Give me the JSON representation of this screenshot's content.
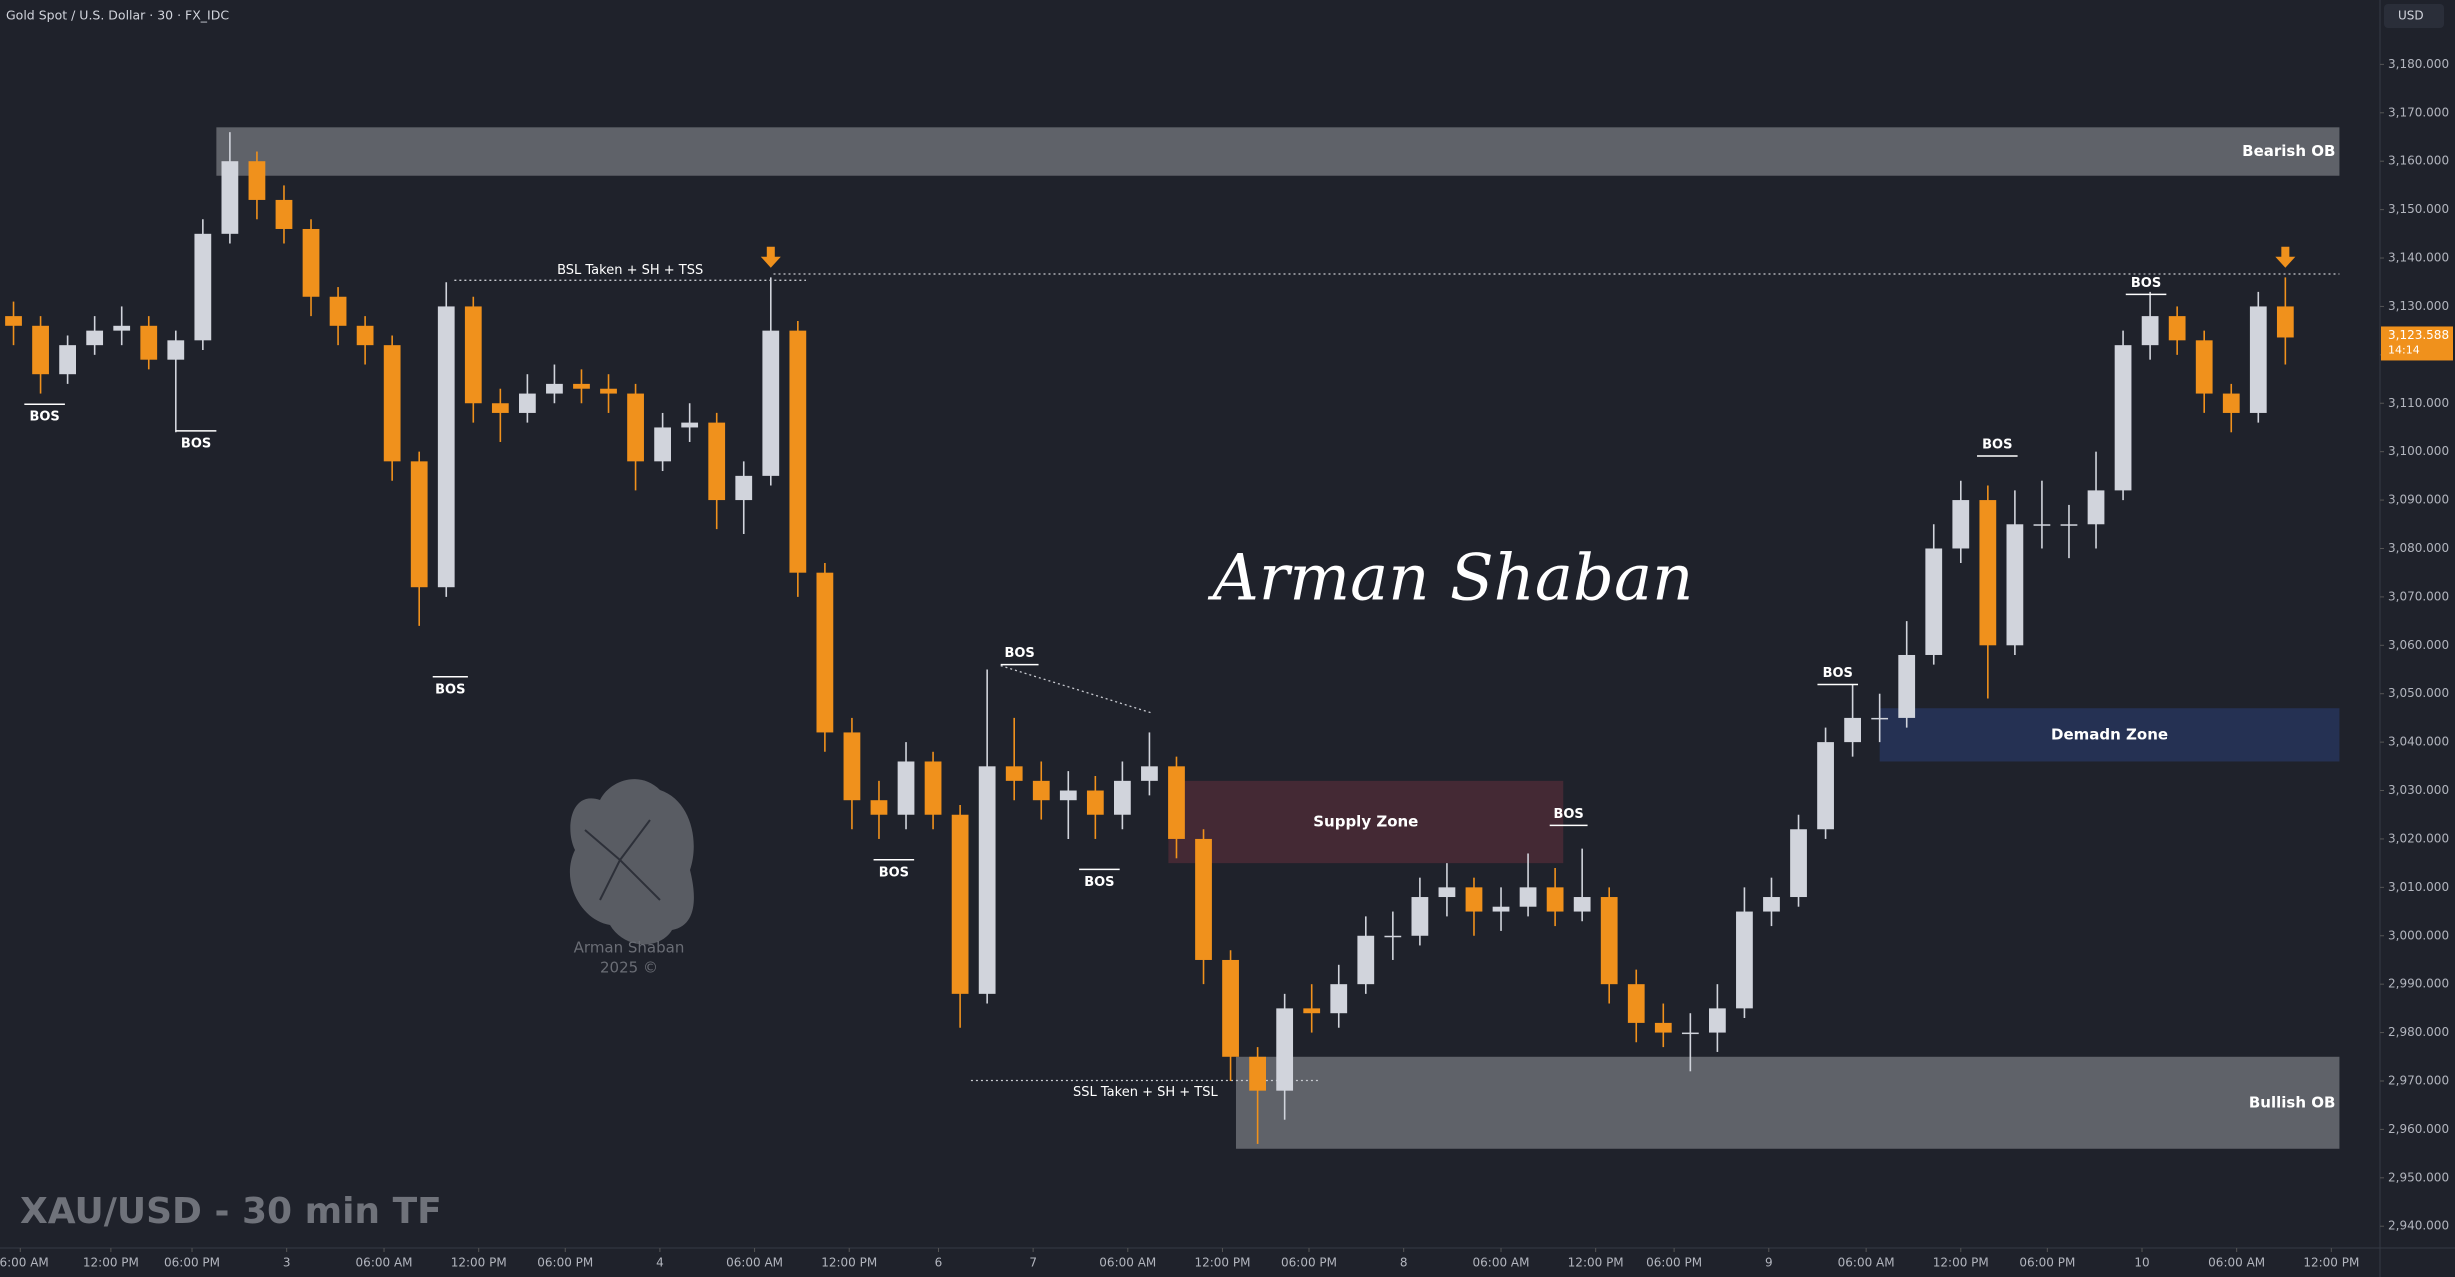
{
  "header": {
    "symbol": "Gold Spot / U.S. Dollar · 30 · FX_IDC",
    "currency": "USD",
    "caption": "XAU/USD - 30 min TF",
    "signature": "Arman Shaban",
    "logo_name": "Arman Shaban",
    "logo_year": "2025 ©"
  },
  "chart_data": {
    "type": "candlestick",
    "up_color": "#d1d4dc",
    "down_color": "#f0911c",
    "xlim": [
      0,
      88
    ],
    "ylim": [
      2935.5,
      3193.3
    ],
    "xticks": [
      {
        "value": 0.75,
        "label": "06:00 AM"
      },
      {
        "value": 4.1,
        "label": "12:00 PM"
      },
      {
        "value": 7.1,
        "label": "06:00 PM"
      },
      {
        "value": 10.6,
        "label": "3"
      },
      {
        "value": 14.2,
        "label": "06:00 AM"
      },
      {
        "value": 17.7,
        "label": "12:00 PM"
      },
      {
        "value": 20.9,
        "label": "06:00 PM"
      },
      {
        "value": 24.4,
        "label": "4"
      },
      {
        "value": 27.9,
        "label": "06:00 AM"
      },
      {
        "value": 31.4,
        "label": "12:00 PM"
      },
      {
        "value": 34.7,
        "label": "6"
      },
      {
        "value": 38.2,
        "label": "7"
      },
      {
        "value": 41.7,
        "label": "06:00 AM"
      },
      {
        "value": 45.2,
        "label": "12:00 PM"
      },
      {
        "value": 48.4,
        "label": "06:00 PM"
      },
      {
        "value": 51.9,
        "label": "8"
      },
      {
        "value": 55.5,
        "label": "06:00 AM"
      },
      {
        "value": 59.0,
        "label": "12:00 PM"
      },
      {
        "value": 61.9,
        "label": "06:00 PM"
      },
      {
        "value": 65.4,
        "label": "9"
      },
      {
        "value": 69.0,
        "label": "06:00 AM"
      },
      {
        "value": 72.5,
        "label": "12:00 PM"
      },
      {
        "value": 75.7,
        "label": "06:00 PM"
      },
      {
        "value": 79.2,
        "label": "10"
      },
      {
        "value": 82.7,
        "label": "06:00 AM"
      },
      {
        "value": 86.2,
        "label": "12:00 PM"
      }
    ],
    "yticks": [
      {
        "value": 3180,
        "label": "3,180.000"
      },
      {
        "value": 3170,
        "label": "3,170.000"
      },
      {
        "value": 3160,
        "label": "3,160.000"
      },
      {
        "value": 3150,
        "label": "3,150.000"
      },
      {
        "value": 3140,
        "label": "3,140.000"
      },
      {
        "value": 3130,
        "label": "3,130.000"
      },
      {
        "value": 3120,
        "label": "3,120.000"
      },
      {
        "value": 3110,
        "label": "3,110.000"
      },
      {
        "value": 3100,
        "label": "3,100.000"
      },
      {
        "value": 3090,
        "label": "3,090.000"
      },
      {
        "value": 3080,
        "label": "3,080.000"
      },
      {
        "value": 3070,
        "label": "3,070.000"
      },
      {
        "value": 3060,
        "label": "3,060.000"
      },
      {
        "value": 3050,
        "label": "3,050.000"
      },
      {
        "value": 3040,
        "label": "3,040.000"
      },
      {
        "value": 3030,
        "label": "3,030.000"
      },
      {
        "value": 3020,
        "label": "3,020.000"
      },
      {
        "value": 3010,
        "label": "3,010.000"
      },
      {
        "value": 3000,
        "label": "3,000.000"
      },
      {
        "value": 2990,
        "label": "2,990.000"
      },
      {
        "value": 2980,
        "label": "2,980.000"
      },
      {
        "value": 2970,
        "label": "2,970.000"
      },
      {
        "value": 2960,
        "label": "2,960.000"
      },
      {
        "value": 2950,
        "label": "2,950.000"
      },
      {
        "value": 2940,
        "label": "2,940.000"
      }
    ],
    "candles": [
      [
        3128,
        3131,
        3122,
        3126
      ],
      [
        3126,
        3128,
        3112,
        3116
      ],
      [
        3116,
        3124,
        3114,
        3122
      ],
      [
        3122,
        3128,
        3120,
        3125
      ],
      [
        3125,
        3130,
        3122,
        3126
      ],
      [
        3126,
        3128,
        3117,
        3119
      ],
      [
        3119,
        3125,
        3104,
        3123
      ],
      [
        3123,
        3148,
        3121,
        3145
      ],
      [
        3145,
        3166,
        3143,
        3160
      ],
      [
        3160,
        3162,
        3148,
        3152
      ],
      [
        3152,
        3155,
        3143,
        3146
      ],
      [
        3146,
        3148,
        3128,
        3132
      ],
      [
        3132,
        3134,
        3122,
        3126
      ],
      [
        3126,
        3128,
        3118,
        3122
      ],
      [
        3122,
        3124,
        3094,
        3098
      ],
      [
        3098,
        3100,
        3064,
        3072
      ],
      [
        3072,
        3135,
        3070,
        3130
      ],
      [
        3130,
        3132,
        3106,
        3110
      ],
      [
        3110,
        3113,
        3102,
        3108
      ],
      [
        3108,
        3116,
        3106,
        3112
      ],
      [
        3112,
        3118,
        3110,
        3114
      ],
      [
        3114,
        3117,
        3110,
        3113
      ],
      [
        3113,
        3116,
        3108,
        3112
      ],
      [
        3112,
        3114,
        3092,
        3098
      ],
      [
        3098,
        3108,
        3096,
        3105
      ],
      [
        3105,
        3110,
        3102,
        3106
      ],
      [
        3106,
        3108,
        3084,
        3090
      ],
      [
        3090,
        3098,
        3083,
        3095
      ],
      [
        3095,
        3136,
        3093,
        3125
      ],
      [
        3125,
        3127,
        3070,
        3075
      ],
      [
        3075,
        3077,
        3038,
        3042
      ],
      [
        3042,
        3045,
        3022,
        3028
      ],
      [
        3028,
        3032,
        3020,
        3025
      ],
      [
        3025,
        3040,
        3022,
        3036
      ],
      [
        3036,
        3038,
        3022,
        3025
      ],
      [
        3025,
        3027,
        2981,
        2988
      ],
      [
        2988,
        3055,
        2986,
        3035
      ],
      [
        3035,
        3045,
        3028,
        3032
      ],
      [
        3032,
        3036,
        3024,
        3028
      ],
      [
        3028,
        3034,
        3020,
        3030
      ],
      [
        3030,
        3033,
        3020,
        3025
      ],
      [
        3025,
        3036,
        3022,
        3032
      ],
      [
        3032,
        3042,
        3029,
        3035
      ],
      [
        3035,
        3037,
        3016,
        3020
      ],
      [
        3020,
        3022,
        2990,
        2995
      ],
      [
        2995,
        2997,
        2970,
        2975
      ],
      [
        2975,
        2977,
        2957,
        2968
      ],
      [
        2968,
        2988,
        2962,
        2985
      ],
      [
        2985,
        2990,
        2980,
        2984
      ],
      [
        2984,
        2994,
        2981,
        2990
      ],
      [
        2990,
        3004,
        2988,
        3000
      ],
      [
        3000,
        3005,
        2995,
        3000
      ],
      [
        3000,
        3012,
        2998,
        3008
      ],
      [
        3008,
        3015,
        3004,
        3010
      ],
      [
        3010,
        3012,
        3000,
        3005
      ],
      [
        3005,
        3010,
        3001,
        3006
      ],
      [
        3006,
        3017,
        3004,
        3010
      ],
      [
        3010,
        3014,
        3002,
        3005
      ],
      [
        3005,
        3018,
        3003,
        3008
      ],
      [
        3008,
        3010,
        2986,
        2990
      ],
      [
        2990,
        2993,
        2978,
        2982
      ],
      [
        2982,
        2986,
        2977,
        2980
      ],
      [
        2980,
        2984,
        2972,
        2980
      ],
      [
        2980,
        2990,
        2976,
        2985
      ],
      [
        2985,
        3010,
        2983,
        3005
      ],
      [
        3005,
        3012,
        3002,
        3008
      ],
      [
        3008,
        3025,
        3006,
        3022
      ],
      [
        3022,
        3043,
        3020,
        3040
      ],
      [
        3040,
        3052,
        3037,
        3045
      ],
      [
        3045,
        3050,
        3040,
        3045
      ],
      [
        3045,
        3065,
        3043,
        3058
      ],
      [
        3058,
        3085,
        3056,
        3080
      ],
      [
        3080,
        3094,
        3077,
        3090
      ],
      [
        3090,
        3093,
        3049,
        3060
      ],
      [
        3060,
        3092,
        3058,
        3085
      ],
      [
        3085,
        3094,
        3080,
        3085
      ],
      [
        3085,
        3089,
        3078,
        3085
      ],
      [
        3085,
        3100,
        3080,
        3092
      ],
      [
        3092,
        3125,
        3090,
        3122
      ],
      [
        3122,
        3133,
        3119,
        3128
      ],
      [
        3128,
        3130,
        3120,
        3123
      ],
      [
        3123,
        3125,
        3108,
        3112
      ],
      [
        3112,
        3114,
        3104,
        3108
      ],
      [
        3108,
        3133,
        3106,
        3130
      ],
      [
        3130,
        3136,
        3118,
        3123.588
      ]
    ],
    "last_price": {
      "value": 3123.588,
      "label": "3,123.588"
    },
    "countdown": "14:14",
    "zones": [
      {
        "label": "Bearish OB",
        "x0": 8,
        "x1": 86.5,
        "y0": 3157,
        "y1": 3167,
        "color": "#6b6d74",
        "align": "right"
      },
      {
        "label": "Supply Zone",
        "x0": 43.2,
        "x1": 57.8,
        "y0": 3015,
        "y1": 3032,
        "color": "#4b2a36",
        "align": "center"
      },
      {
        "label": "Demadn Zone",
        "x0": 69.5,
        "x1": 86.5,
        "y0": 3036,
        "y1": 3047,
        "color": "#27345a",
        "align": "center"
      },
      {
        "label": "Bullish OB",
        "x0": 45.7,
        "x1": 86.5,
        "y0": 2956,
        "y1": 2975,
        "color": "#6b6d74",
        "align": "right"
      }
    ],
    "levels": [
      {
        "label": "BSL Taken + SH + TSS",
        "x0": 16.8,
        "x1": 29.8,
        "price": 3135.4,
        "position": "above"
      },
      {
        "label": "SSL Taken + SH + TSL",
        "x0": 35.9,
        "x1": 48.8,
        "price": 2970.1,
        "position": "below"
      },
      {
        "x0": 28.6,
        "x1": 86.5,
        "price": 3136.7
      }
    ],
    "bos": [
      {
        "label": "BOS",
        "x0": 0.9,
        "x1": 2.4,
        "price": 3109.8,
        "position": "below"
      },
      {
        "label": "BOS",
        "x0": 6.5,
        "x1": 8.0,
        "price": 3104.3,
        "position": "below"
      },
      {
        "label": "BOS",
        "x0": 16.0,
        "x1": 17.3,
        "price": 3053.5,
        "position": "below"
      },
      {
        "label": "BOS",
        "x0": 32.3,
        "x1": 33.8,
        "price": 3015.7,
        "position": "below"
      },
      {
        "label": "BOS",
        "x0": 39.9,
        "x1": 41.4,
        "price": 3013.7,
        "position": "below"
      },
      {
        "label": "BOS",
        "x0": 37.0,
        "x1": 38.4,
        "price": 3056,
        "position": "above"
      },
      {
        "label": "BOS",
        "x0": 57.3,
        "x1": 58.7,
        "price": 3022.8,
        "position": "above"
      },
      {
        "label": "BOS",
        "x0": 67.2,
        "x1": 68.7,
        "price": 3051.9,
        "position": "above"
      },
      {
        "label": "BOS",
        "x0": 73.1,
        "x1": 74.6,
        "price": 3099.1,
        "position": "above"
      },
      {
        "label": "BOS",
        "x0": 78.6,
        "x1": 80.1,
        "price": 3132.5,
        "position": "above"
      }
    ],
    "trendline": {
      "x": [
        37,
        42.6
      ],
      "y": [
        3055.8,
        3046
      ]
    },
    "arrows": [
      {
        "x": 28.5,
        "price": 3138
      },
      {
        "x": 84.5,
        "price": 3138
      }
    ]
  }
}
